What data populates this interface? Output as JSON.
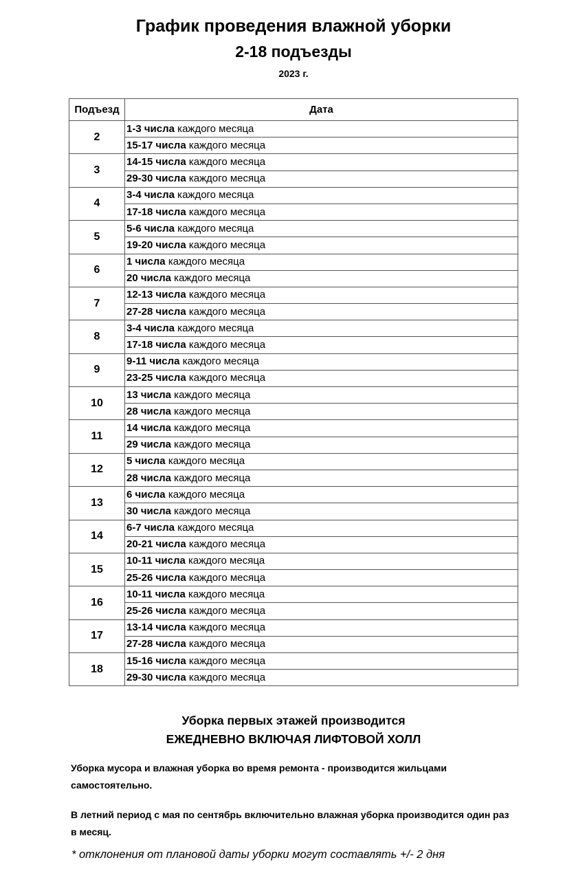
{
  "header": {
    "title": "График проведения влажной уборки",
    "subtitle": "2-18 подъезды",
    "year": "2023 г."
  },
  "table": {
    "columns": [
      "Подъезд",
      "Дата"
    ],
    "suffix": "каждого месяца",
    "rows": [
      {
        "entrance": "2",
        "dates": [
          "1-3 числа",
          "15-17 числа"
        ]
      },
      {
        "entrance": "3",
        "dates": [
          "14-15 числа",
          "29-30 числа"
        ]
      },
      {
        "entrance": "4",
        "dates": [
          "3-4 числа",
          "17-18 числа"
        ]
      },
      {
        "entrance": "5",
        "dates": [
          "5-6 числа",
          "19-20 числа"
        ]
      },
      {
        "entrance": "6",
        "dates": [
          "1 числа",
          "20 числа"
        ]
      },
      {
        "entrance": "7",
        "dates": [
          "12-13 числа",
          "27-28 числа"
        ]
      },
      {
        "entrance": "8",
        "dates": [
          "3-4 числа",
          "17-18 числа"
        ]
      },
      {
        "entrance": "9",
        "dates": [
          "9-11 числа",
          "23-25 числа"
        ]
      },
      {
        "entrance": "10",
        "dates": [
          "13 числа",
          "28 числа"
        ]
      },
      {
        "entrance": "11",
        "dates": [
          "14 числа",
          "29 числа"
        ]
      },
      {
        "entrance": "12",
        "dates": [
          "5 числа",
          "28 числа"
        ]
      },
      {
        "entrance": "13",
        "dates": [
          "6 числа",
          "30 числа"
        ]
      },
      {
        "entrance": "14",
        "dates": [
          "6-7 числа",
          "20-21 числа"
        ]
      },
      {
        "entrance": "15",
        "dates": [
          "10-11 числа",
          "25-26 числа"
        ]
      },
      {
        "entrance": "16",
        "dates": [
          "10-11 числа",
          "25-26 числа"
        ]
      },
      {
        "entrance": "17",
        "dates": [
          "13-14 числа",
          "27-28 числа"
        ]
      },
      {
        "entrance": "18",
        "dates": [
          "15-16 числа",
          "29-30 числа"
        ]
      }
    ]
  },
  "footer": {
    "line1": "Уборка первых этажей производится",
    "line2": "ЕЖЕДНЕВНО ВКЛЮЧАЯ ЛИФТОВОЙ ХОЛЛ",
    "para1": "Уборка мусора и влажная уборка во время ремонта -  производится жильцами самостоятельно.",
    "para2": "В летний период с мая по сентябрь включительно влажная уборка производится один раз в месяц.",
    "note": "* отклонения от плановой даты уборки могут составлять +/- 2 дня"
  }
}
